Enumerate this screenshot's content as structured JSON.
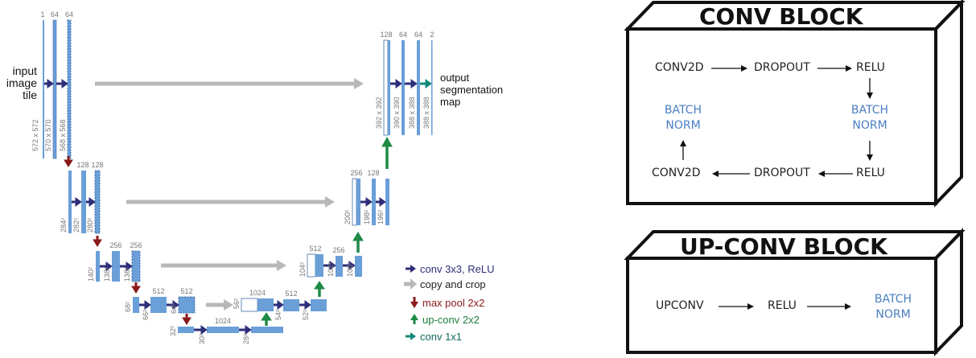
{
  "unet": {
    "input_label": [
      "input",
      "image",
      "tile"
    ],
    "output_label": [
      "output",
      "segmentation",
      "map"
    ],
    "top_channel_labels": [
      "1",
      "64",
      "64"
    ],
    "output_channel_labels": [
      "128",
      "64",
      "64",
      "2"
    ],
    "level1_size_labels": [
      "572 x 572",
      "570 x 570",
      "568 x 568"
    ],
    "output_size_labels": [
      "392 x 392",
      "390 x 390",
      "388 x 388",
      "388 x 388"
    ],
    "level2_channel_labels": [
      "128",
      "128"
    ],
    "level2_size_labels": [
      "284²",
      "282²",
      "280²"
    ],
    "level2_up_channel_labels": [
      "256",
      "128"
    ],
    "level2_up_size_labels": [
      "200²",
      "198²",
      "196²"
    ],
    "level3_channel_labels": [
      "256",
      "256"
    ],
    "level3_size_labels": [
      "140²",
      "138²",
      "136²"
    ],
    "level3_up_channel_labels": [
      "512",
      "256"
    ],
    "level3_up_size_labels": [
      "104²",
      "102²",
      "100²"
    ],
    "level4_channel_labels": [
      "512",
      "512"
    ],
    "level4_size_labels": [
      "68²",
      "66²",
      "64²"
    ],
    "level4_up_channel_labels": [
      "1024",
      "512"
    ],
    "level4_up_size_labels": [
      "56²",
      "54²",
      "52²"
    ],
    "level5_channel_labels": [
      "1024"
    ],
    "level5_size_labels": [
      "32²",
      "30²",
      "28²"
    ],
    "legend": [
      {
        "label": "conv 3x3, ReLU",
        "color": "#2e2e7a"
      },
      {
        "label": "copy and crop",
        "color": "#222222"
      },
      {
        "label": "max pool 2x2",
        "color": "#8b1a1a"
      },
      {
        "label": "up-conv 2x2",
        "color": "#1e7d3a"
      },
      {
        "label": "conv 1x1",
        "color": "#0f6b60"
      }
    ],
    "colors": {
      "feature_map": "#6a9fd8",
      "feature_map_border": "#3f6fa8",
      "conv_arrow": "#2e2e7a",
      "copy_arrow": "#b8b8b8",
      "pool_arrow": "#8b1a1a",
      "upconv_arrow": "#1e8a45",
      "conv1x1_arrow": "#12897a"
    }
  },
  "conv_block": {
    "title": "CONV BLOCK",
    "conv2d_top": "CONV2D",
    "dropout_top": "DROPOUT",
    "relu_top": "RELU",
    "batchnorm_left": [
      "BATCH",
      "NORM"
    ],
    "batchnorm_right": [
      "BATCH",
      "NORM"
    ],
    "conv2d_bottom": "CONV2D",
    "dropout_bottom": "DROPOUT",
    "relu_bottom": "RELU"
  },
  "upconv_block": {
    "title": "UP-CONV BLOCK",
    "upconv": "UPCONV",
    "relu": "RELU",
    "batchnorm": [
      "BATCH",
      "NORM"
    ]
  },
  "colors": {
    "blue_text": "#4a7fc1",
    "box_stroke": "#111111"
  }
}
